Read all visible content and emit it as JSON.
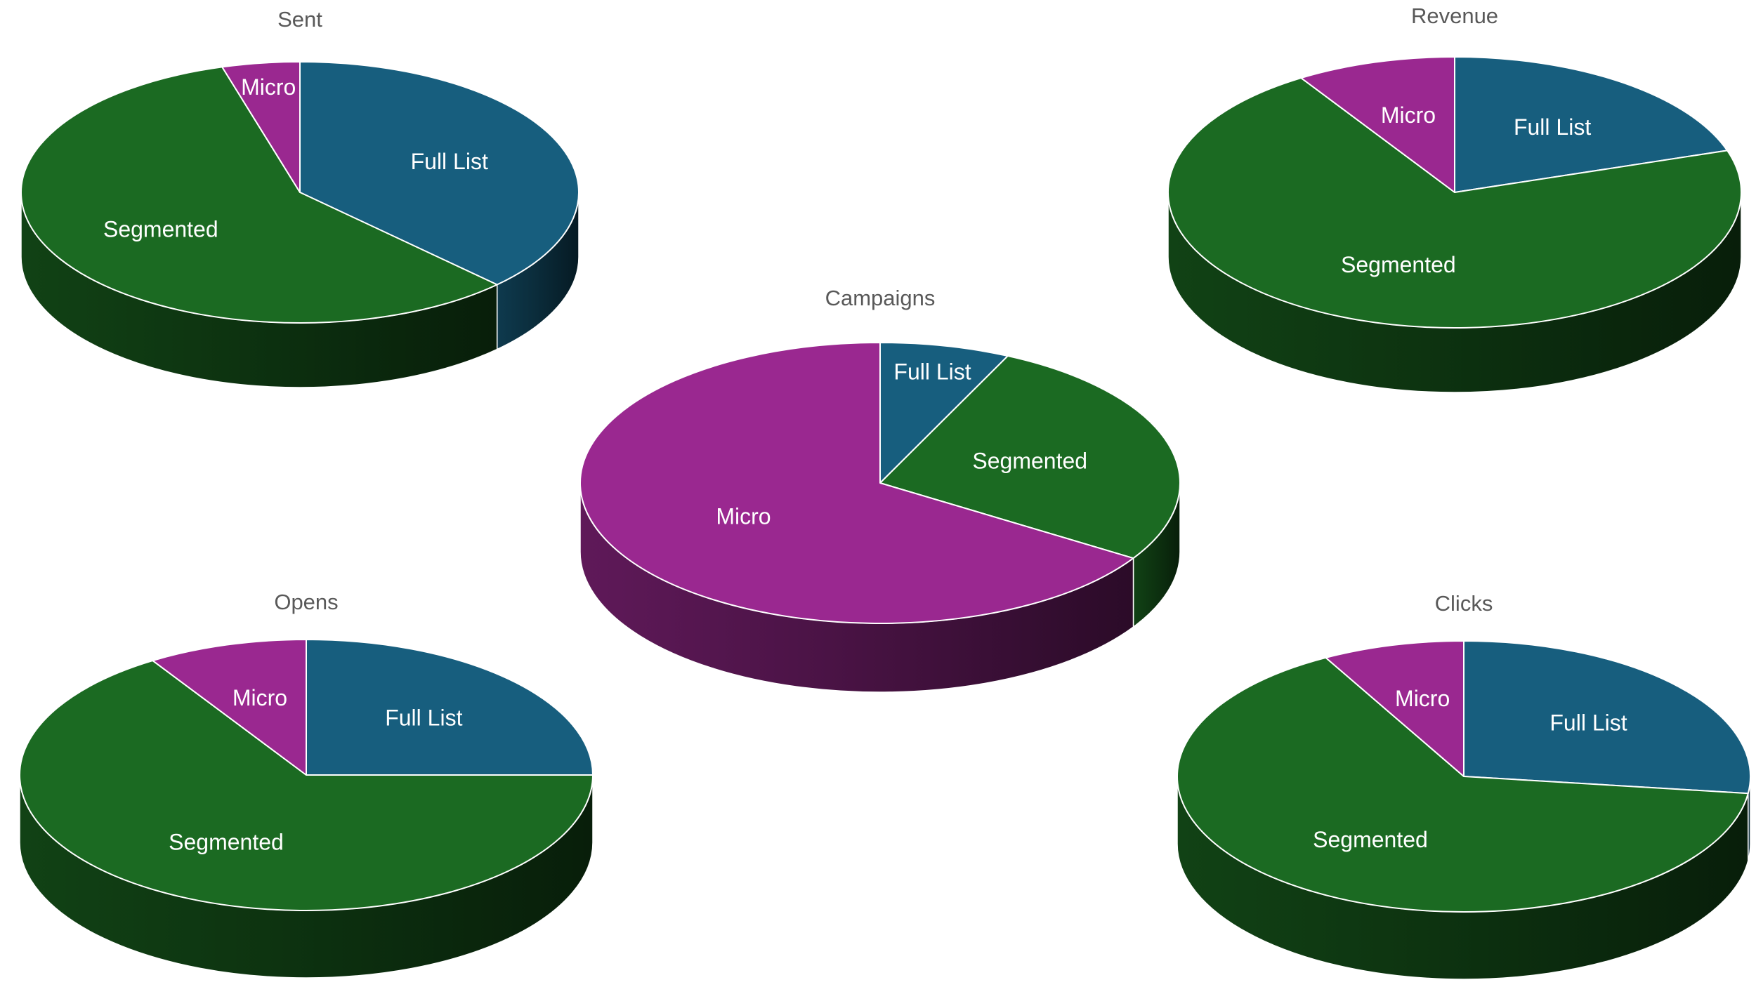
{
  "colors": {
    "Full List": "#175E7E",
    "Segmented": "#1B6A22",
    "Micro": "#9A2890"
  },
  "chart_data": [
    {
      "type": "pie",
      "style": "3d",
      "title": "Sent",
      "labels": [
        "Full List",
        "Segmented",
        "Micro"
      ],
      "values": [
        37.5,
        58,
        4.5
      ]
    },
    {
      "type": "pie",
      "style": "3d",
      "title": "Revenue",
      "labels": [
        "Full List",
        "Segmented",
        "Micro"
      ],
      "values": [
        20,
        71,
        9
      ]
    },
    {
      "type": "pie",
      "style": "3d",
      "title": "Campaigns",
      "labels": [
        "Full List",
        "Segmented",
        "Micro"
      ],
      "values": [
        7,
        27,
        66
      ]
    },
    {
      "type": "pie",
      "style": "3d",
      "title": "Opens",
      "labels": [
        "Full List",
        "Segmented",
        "Micro"
      ],
      "values": [
        25,
        66,
        9
      ]
    },
    {
      "type": "pie",
      "style": "3d",
      "title": "Clicks",
      "labels": [
        "Full List",
        "Segmented",
        "Micro"
      ],
      "values": [
        27,
        65,
        8
      ]
    }
  ]
}
